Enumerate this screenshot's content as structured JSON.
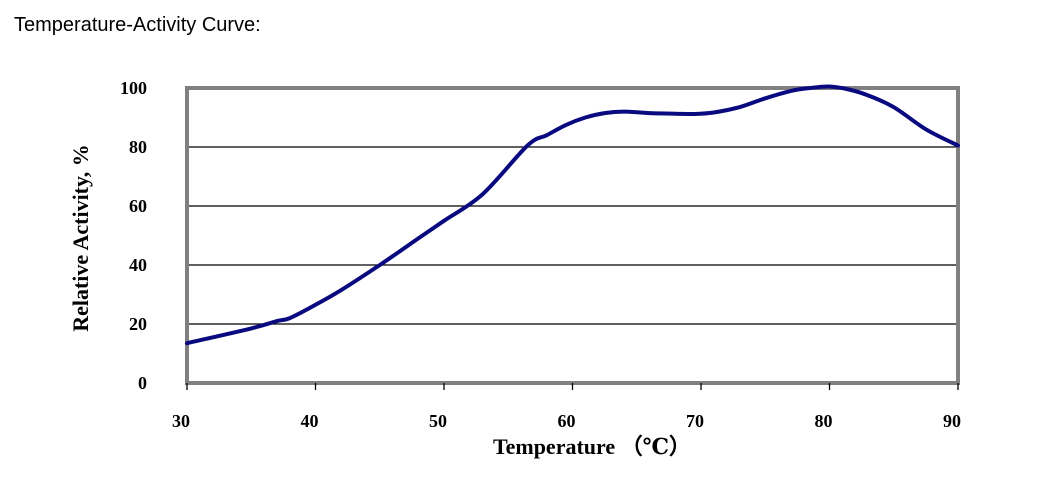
{
  "heading": "Temperature-Activity Curve:",
  "chart_data": {
    "type": "line",
    "title": "",
    "xlabel": "Temperature （℃）",
    "ylabel": "Relative Activity, %",
    "xlim": [
      30,
      90
    ],
    "ylim": [
      0,
      100
    ],
    "x_ticks": [
      30,
      40,
      50,
      60,
      70,
      80,
      90
    ],
    "y_ticks": [
      0,
      20,
      40,
      60,
      80,
      100
    ],
    "grid": "horizontal",
    "legend": "none",
    "series": [
      {
        "color": "#0a0a80",
        "x": [
          30,
          35,
          37,
          38,
          40,
          42,
          45,
          48,
          50,
          53,
          56.5,
          58,
          59.5,
          61,
          62.5,
          64,
          66,
          68,
          69.5,
          71,
          73,
          75,
          77,
          78.5,
          80,
          81.5,
          83,
          85,
          87.5,
          90
        ],
        "y": [
          13.5,
          18.5,
          21,
          22,
          26.5,
          31.5,
          40,
          49,
          55,
          64,
          80.5,
          84,
          87.5,
          90,
          91.5,
          92,
          91.5,
          91.3,
          91.2,
          91.7,
          93.5,
          96.5,
          99,
          100,
          100.5,
          99.5,
          97.5,
          93.5,
          86,
          80.5
        ]
      }
    ]
  },
  "style": {
    "line_color": "#0a0a80",
    "frame_color": "#808080",
    "grid_color": "#000000"
  }
}
